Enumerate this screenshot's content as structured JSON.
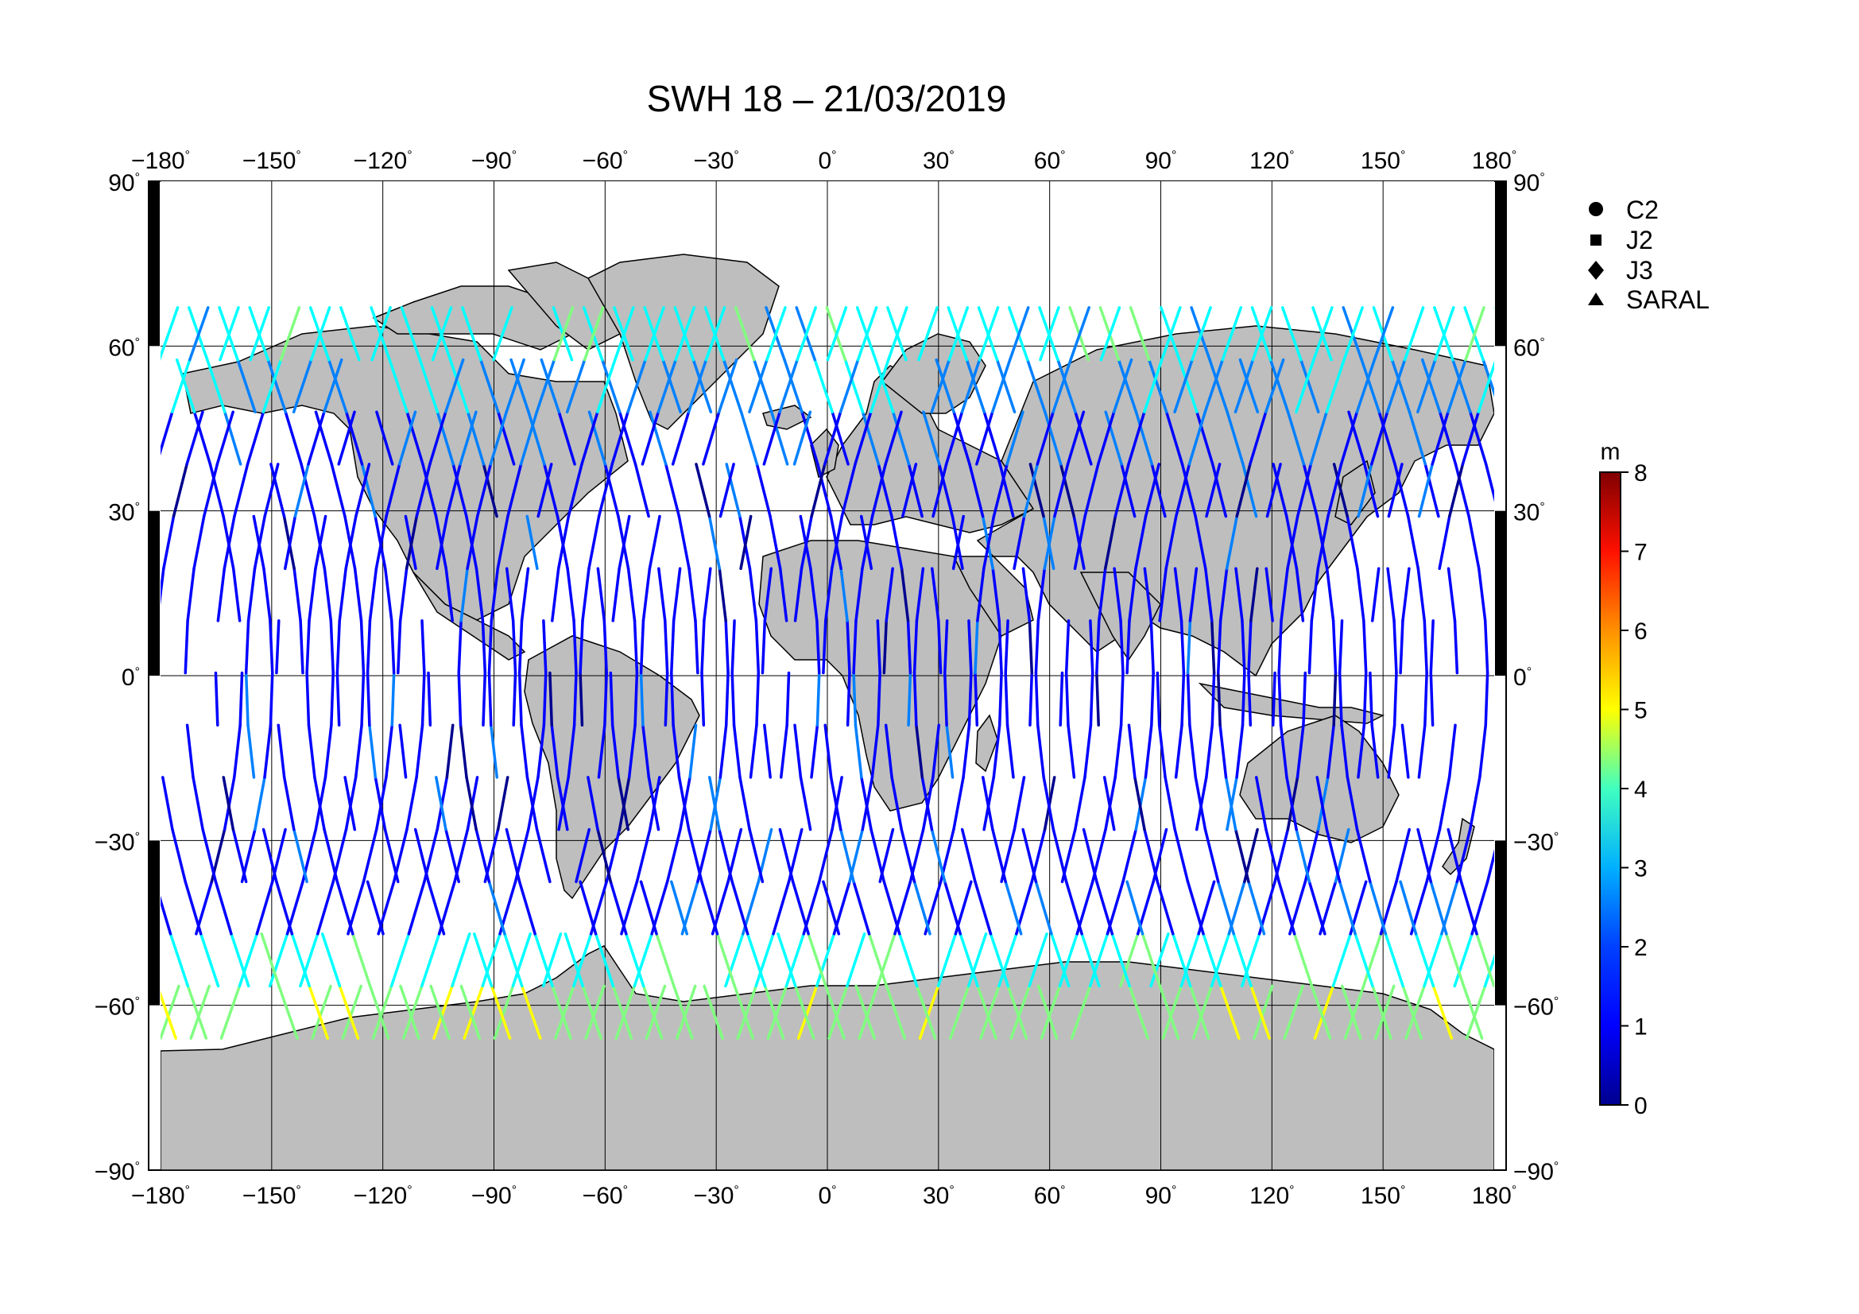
{
  "title": "SWH 18 – 21/03/2019",
  "map": {
    "projection": "equirectangular",
    "lon_range": [
      -180,
      180
    ],
    "lat_range": [
      -90,
      90
    ],
    "grid": true,
    "land_color": "#bebebe",
    "ocean_color": "#ffffff",
    "lon_ticks": [
      "−180",
      "−150",
      "−120",
      "−90",
      "−60",
      "−30",
      "0",
      "30",
      "60",
      "90",
      "120",
      "150",
      "180"
    ],
    "lat_ticks": [
      "90",
      "60",
      "30",
      "0",
      "−30",
      "−60",
      "−90"
    ],
    "degree_symbol": "°"
  },
  "legend": {
    "placement": "right",
    "items": [
      {
        "label": "C2",
        "marker": "circle-icon"
      },
      {
        "label": "J2",
        "marker": "square-icon"
      },
      {
        "label": "J3",
        "marker": "diamond-icon"
      },
      {
        "label": "SARAL",
        "marker": "triangle-icon"
      }
    ]
  },
  "colorbar": {
    "unit": "m",
    "min": 0,
    "max": 8,
    "ticks": [
      "0",
      "1",
      "2",
      "3",
      "4",
      "5",
      "6",
      "7",
      "8"
    ],
    "colormap": [
      "#00008f",
      "#0000ff",
      "#0080ff",
      "#00ffff",
      "#80ff80",
      "#ffff00",
      "#ff8000",
      "#ff0000",
      "#800000"
    ]
  }
}
